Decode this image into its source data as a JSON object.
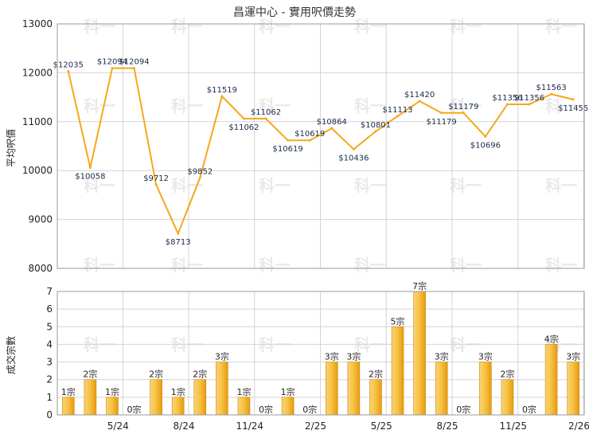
{
  "chart_data": [
    {
      "type": "line",
      "title": "昌運中心 - 實用呎價走勢",
      "ylabel": "平均呎價",
      "ylim": [
        8000,
        13000
      ],
      "yticks": [
        8000,
        9000,
        10000,
        11000,
        12000,
        13000
      ],
      "grid": true,
      "color": "#f5a81c",
      "points": [
        {
          "label": "$12035",
          "value": 12035
        },
        {
          "label": "$10058",
          "value": 10058
        },
        {
          "label": "$12094",
          "value": 12094
        },
        {
          "label": "$12094",
          "value": 12094
        },
        {
          "label": "$9712",
          "value": 9712
        },
        {
          "label": "$8713",
          "value": 8713
        },
        {
          "label": "$9852",
          "value": 9852
        },
        {
          "label": "$11519",
          "value": 11519
        },
        {
          "label": "$11062",
          "value": 11062
        },
        {
          "label": "$11062",
          "value": 11062
        },
        {
          "label": "$10619",
          "value": 10619
        },
        {
          "label": "$10619",
          "value": 10619
        },
        {
          "label": "$10864",
          "value": 10864
        },
        {
          "label": "$10436",
          "value": 10436
        },
        {
          "label": "$10801",
          "value": 10801
        },
        {
          "label": "$11113",
          "value": 11113
        },
        {
          "label": "$11420",
          "value": 11420
        },
        {
          "label": "$11179",
          "value": 11179
        },
        {
          "label": "$11179",
          "value": 11179
        },
        {
          "label": "$10696",
          "value": 10696
        },
        {
          "label": "$11356",
          "value": 11356
        },
        {
          "label": "$11356",
          "value": 11356
        },
        {
          "label": "$11563",
          "value": 11563
        },
        {
          "label": "$11455",
          "value": 11455
        }
      ]
    },
    {
      "type": "bar",
      "ylabel": "成交宗數",
      "ylim": [
        0,
        7
      ],
      "yticks": [
        0,
        1,
        2,
        3,
        4,
        5,
        6,
        7
      ],
      "grid": true,
      "color": "#f5a81c",
      "categories": [
        "5/24",
        "8/24",
        "11/24",
        "2/25",
        "5/25",
        "8/25",
        "11/25",
        "2/26"
      ],
      "bars": [
        {
          "value": 1,
          "label": "1宗"
        },
        {
          "value": 2,
          "label": "2宗"
        },
        {
          "value": 1,
          "label": "1宗"
        },
        {
          "value": 0,
          "label": "0宗"
        },
        {
          "value": 2,
          "label": "2宗"
        },
        {
          "value": 1,
          "label": "1宗"
        },
        {
          "value": 2,
          "label": "2宗"
        },
        {
          "value": 3,
          "label": "3宗"
        },
        {
          "value": 1,
          "label": "1宗"
        },
        {
          "value": 0,
          "label": "0宗"
        },
        {
          "value": 1,
          "label": "1宗"
        },
        {
          "value": 0,
          "label": "0宗"
        },
        {
          "value": 3,
          "label": "3宗"
        },
        {
          "value": 3,
          "label": "3宗"
        },
        {
          "value": 2,
          "label": "2宗"
        },
        {
          "value": 5,
          "label": "5宗"
        },
        {
          "value": 7,
          "label": "7宗"
        },
        {
          "value": 3,
          "label": "3宗"
        },
        {
          "value": 0,
          "label": "0宗"
        },
        {
          "value": 3,
          "label": "3宗"
        },
        {
          "value": 2,
          "label": "2宗"
        },
        {
          "value": 0,
          "label": "0宗"
        },
        {
          "value": 4,
          "label": "4宗"
        },
        {
          "value": 3,
          "label": "3宗"
        }
      ]
    }
  ],
  "watermark": "科一"
}
